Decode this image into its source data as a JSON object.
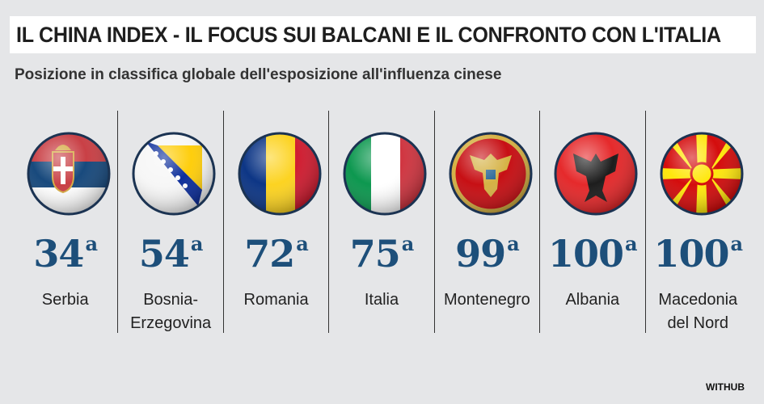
{
  "header": {
    "title": "IL CHINA INDEX - IL FOCUS SUI BALCANI E IL CONFRONTO CON L'ITALIA",
    "subtitle": "Posizione in classifica globale dell'esposizione all'influenza cinese"
  },
  "items": [
    {
      "rank": 34,
      "suffix": "a",
      "name": "Serbia"
    },
    {
      "rank": 54,
      "suffix": "a",
      "name": "Bosnia-\nErzegovina"
    },
    {
      "rank": 72,
      "suffix": "a",
      "name": "Romania"
    },
    {
      "rank": 75,
      "suffix": "a",
      "name": "Italia"
    },
    {
      "rank": 99,
      "suffix": "a",
      "name": "Montenegro"
    },
    {
      "rank": 100,
      "suffix": "a",
      "name": "Albania"
    },
    {
      "rank": 100,
      "suffix": "a",
      "name": "Macedonia\ndel Nord"
    }
  ],
  "footer": {
    "source": "WITHUB"
  }
}
